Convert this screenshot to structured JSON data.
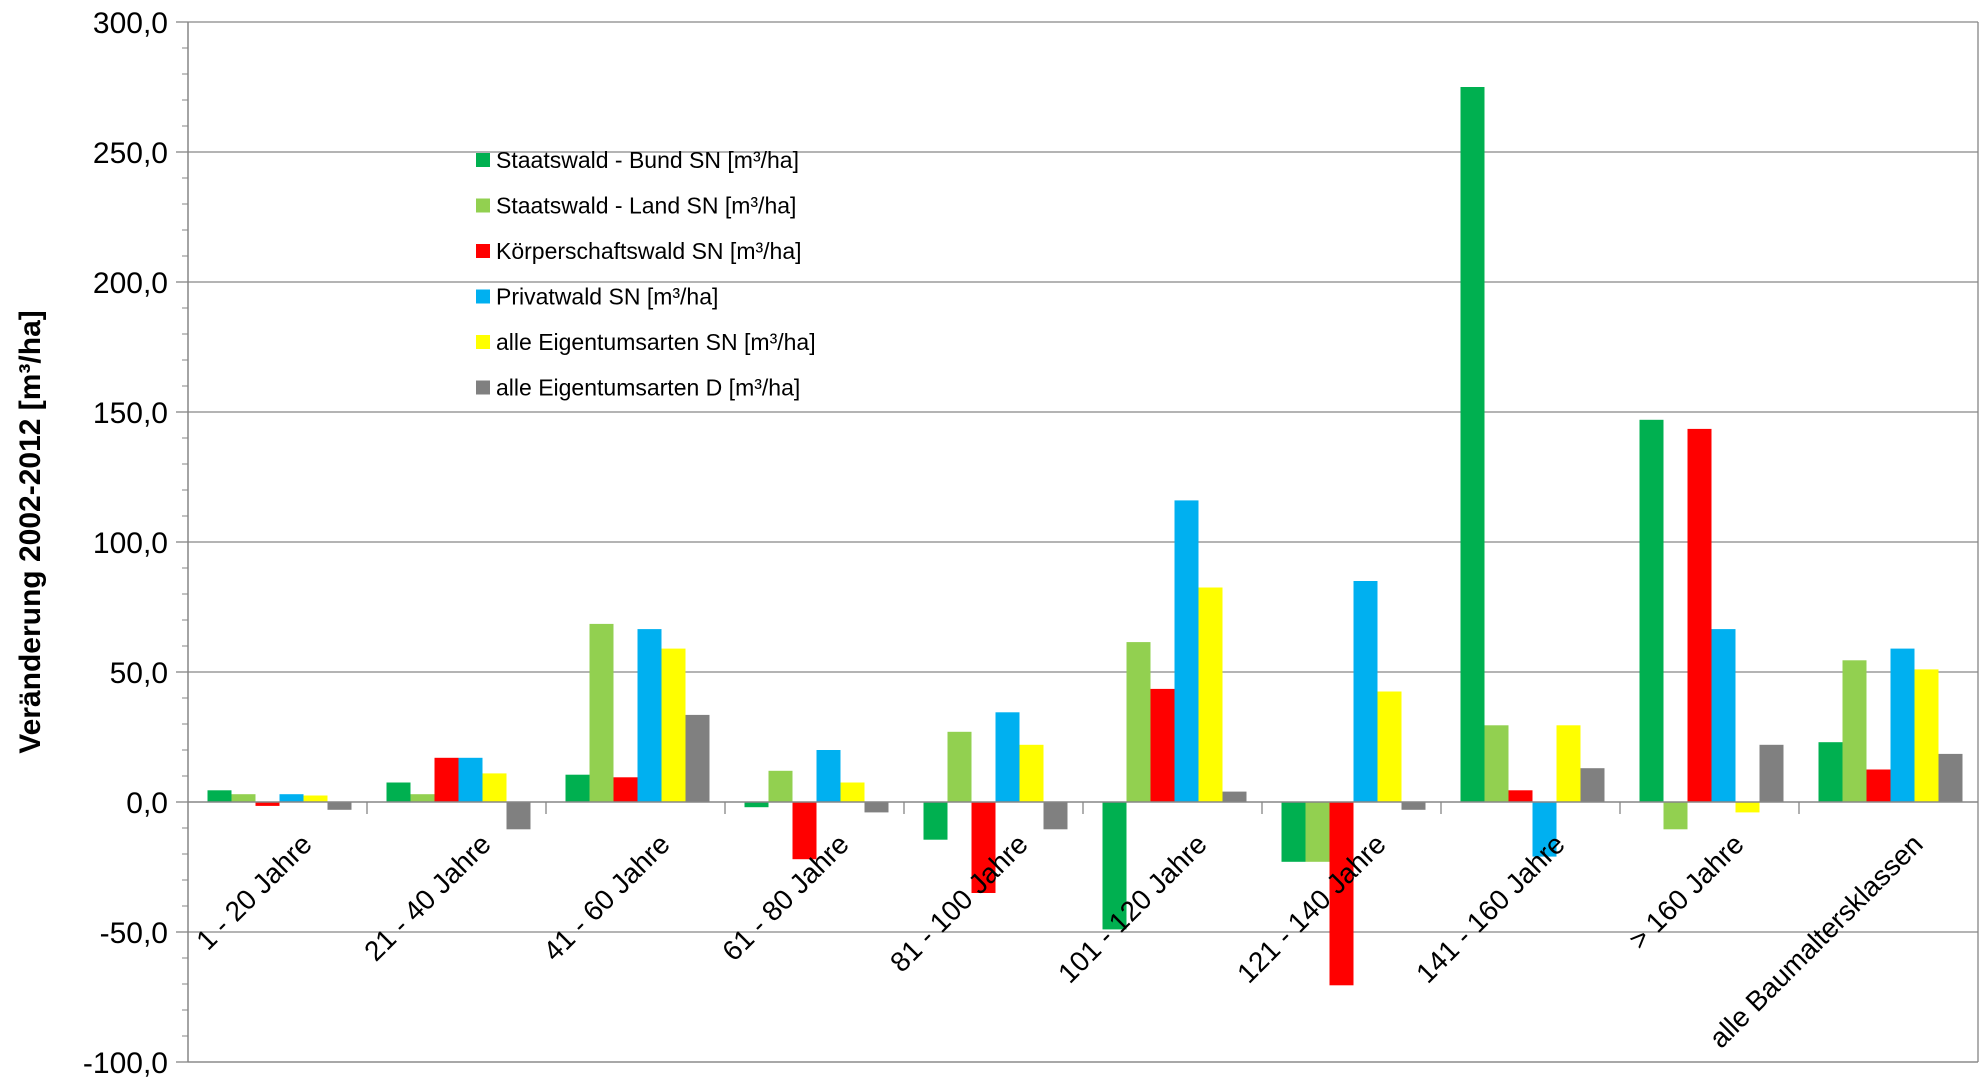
{
  "chart_data": {
    "type": "bar",
    "ylabel": "Veränderung 2002-2012 [m³/ha]",
    "ylim": [
      -100,
      300
    ],
    "yticks": [
      {
        "value": 300,
        "label": "300,0"
      },
      {
        "value": 250,
        "label": "250,0"
      },
      {
        "value": 200,
        "label": "200,0"
      },
      {
        "value": 150,
        "label": "150,0"
      },
      {
        "value": 100,
        "label": "100,0"
      },
      {
        "value": 50,
        "label": "50,0"
      },
      {
        "value": 0,
        "label": "0,0"
      },
      {
        "value": -50,
        "label": "-50,0"
      },
      {
        "value": -100,
        "label": "-100,0"
      }
    ],
    "negative_tick_color": "#ff0000",
    "grid": "horizontal",
    "legend_position": "upper-left-inside",
    "categories": [
      "1 - 20 Jahre",
      "21 - 40 Jahre",
      "41 - 60 Jahre",
      "61 - 80 Jahre",
      "81 - 100 Jahre",
      "101 - 120 Jahre",
      "121 - 140 Jahre",
      "141 - 160 Jahre",
      "> 160 Jahre",
      "alle Baumaltersklassen"
    ],
    "series": [
      {
        "name": "Staatswald - Bund SN [m³/ha]",
        "color": "#00b050",
        "values": [
          4.5,
          7.5,
          10.5,
          -2.0,
          -14.5,
          -49.0,
          -23.0,
          275.0,
          147.0,
          23.0
        ]
      },
      {
        "name": "Staatswald - Land SN [m³/ha]",
        "color": "#92d050",
        "values": [
          3.0,
          3.0,
          68.5,
          12.0,
          27.0,
          61.5,
          -23.0,
          29.5,
          -10.5,
          54.5
        ]
      },
      {
        "name": "Körperschaftswald SN [m³/ha]",
        "color": "#ff0000",
        "values": [
          -1.5,
          17.0,
          9.5,
          -22.0,
          -35.0,
          43.5,
          -70.5,
          4.5,
          143.5,
          12.5
        ]
      },
      {
        "name": "Privatwald SN  [m³/ha]",
        "color": "#00b0f0",
        "values": [
          3.0,
          17.0,
          66.5,
          20.0,
          34.5,
          116.0,
          85.0,
          -21.0,
          66.5,
          59.0
        ]
      },
      {
        "name": "alle Eigentumsarten SN [m³/ha]",
        "color": "#ffff00",
        "values": [
          2.5,
          11.0,
          59.0,
          7.5,
          22.0,
          82.5,
          42.5,
          29.5,
          -4.0,
          51.0
        ]
      },
      {
        "name": "alle Eigentumsarten D [m³/ha]",
        "color": "#808080",
        "values": [
          -3.0,
          -10.5,
          33.5,
          -4.0,
          -10.5,
          4.0,
          -3.0,
          13.0,
          22.0,
          18.5
        ]
      }
    ]
  }
}
